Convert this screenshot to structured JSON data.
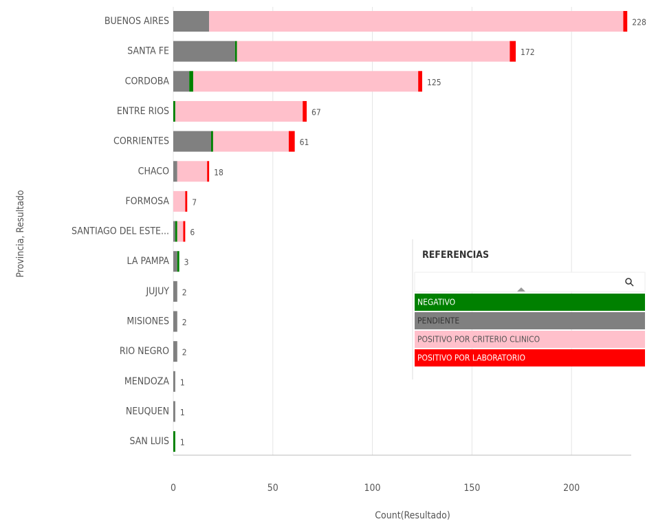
{
  "chart_data": {
    "type": "stacked-bar-horizontal",
    "x_label": "Count(Resultado)",
    "y_label": "Provincia, Resultado",
    "legend_title": "REFERENCIAS",
    "categories": [
      "BUENOS AIRES",
      "SANTA FE",
      "CORDOBA",
      "ENTRE RIOS",
      "CORRIENTES",
      "CHACO",
      "FORMOSA",
      "SANTIAGO DEL ESTE...",
      "LA PAMPA",
      "JUJUY",
      "MISIONES",
      "RIO NEGRO",
      "MENDOZA",
      "NEUQUEN",
      "SAN LUIS"
    ],
    "series": [
      {
        "name": "NEGATIVO",
        "color": "#008000",
        "values": [
          0,
          1,
          2,
          1,
          1,
          0,
          0,
          1,
          1,
          0,
          0,
          0,
          0,
          0,
          1
        ]
      },
      {
        "name": "PENDIENTE",
        "color": "#808080",
        "values": [
          18,
          31,
          8,
          0,
          19,
          2,
          0,
          1,
          2,
          2,
          2,
          2,
          1,
          1,
          0
        ]
      },
      {
        "name": "POSITIVO POR CRITERIO CLINICO",
        "color": "#ffc0cb",
        "values": [
          208,
          137,
          113,
          64,
          38,
          15,
          6,
          3,
          0,
          0,
          0,
          0,
          0,
          0,
          0
        ]
      },
      {
        "name": "POSITIVO POR LABORATORIO",
        "color": "#ff0000",
        "values": [
          2,
          3,
          2,
          2,
          3,
          1,
          1,
          1,
          0,
          0,
          0,
          0,
          0,
          0,
          0
        ]
      }
    ],
    "totals": [
      228,
      172,
      125,
      67,
      61,
      18,
      7,
      6,
      3,
      2,
      2,
      2,
      1,
      1,
      1
    ],
    "xlim": [
      0,
      230
    ],
    "xticks": [
      0,
      50,
      100,
      150,
      200
    ],
    "grid": true
  }
}
